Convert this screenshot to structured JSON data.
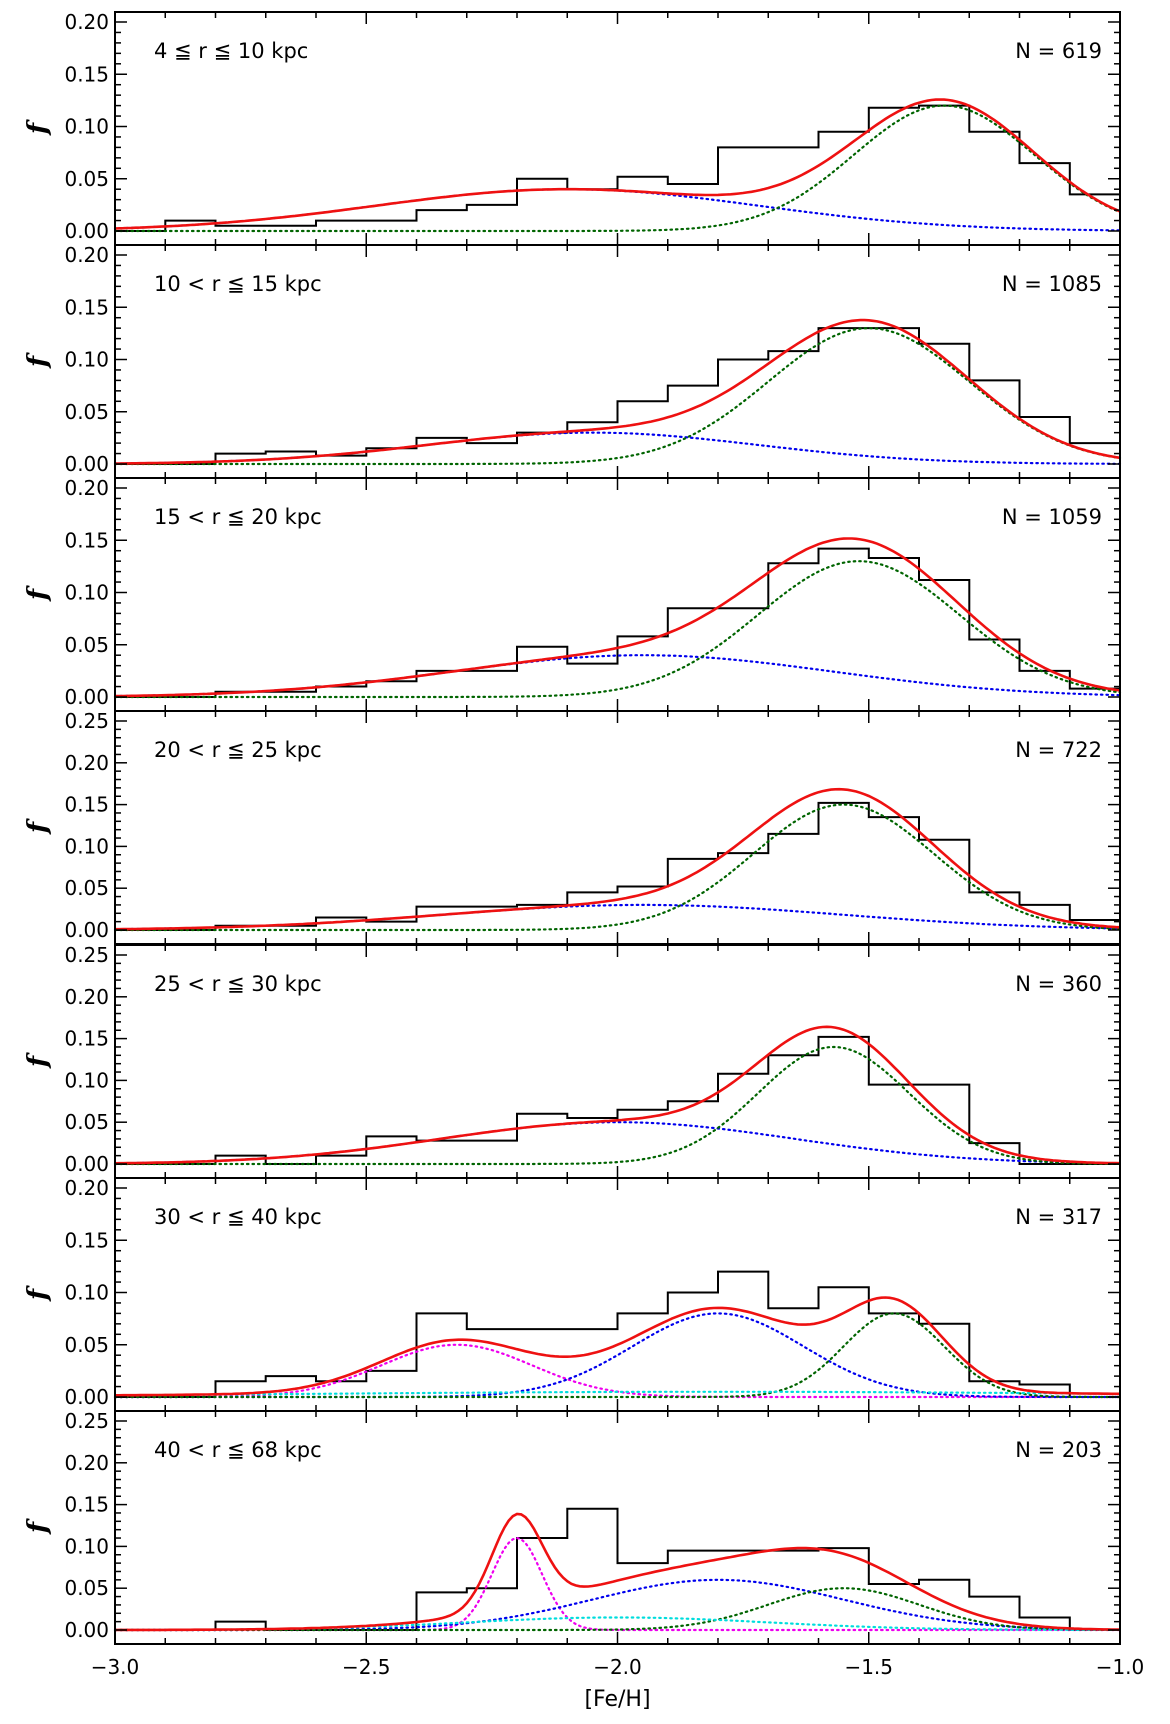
{
  "chart_data": {
    "type": "histogram_with_gaussian_fits",
    "xlabel": "[Fe/H]",
    "ylabel": "f",
    "xlim": [
      -3.0,
      -1.0
    ],
    "x_ticks": [
      "−3.0",
      "−2.5",
      "−2.0",
      "−1.5",
      "−1.0"
    ],
    "bin_edges": [
      -3.0,
      -2.9,
      -2.8,
      -2.7,
      -2.6,
      -2.5,
      -2.4,
      -2.3,
      -2.2,
      -2.1,
      -2.0,
      -1.9,
      -1.8,
      -1.7,
      -1.6,
      -1.5,
      -1.4,
      -1.3,
      -1.2,
      -1.1,
      -1.0
    ],
    "colors": {
      "histogram": "#000000",
      "total_fit": "#ee1111",
      "metal_poor": "#0000ee",
      "metal_rich": "#006400",
      "comp3": "#ee00ee",
      "comp4": "#00dddd"
    },
    "panels": [
      {
        "range_label": "4 ≦ r ≦ 10 kpc",
        "n_label": "N = 619",
        "ylim": [
          0,
          0.2
        ],
        "y_ticks": [
          "0.00",
          "0.05",
          "0.10",
          "0.15",
          "0.20"
        ],
        "hist": [
          0.0,
          0.01,
          0.005,
          0.005,
          0.01,
          0.01,
          0.02,
          0.025,
          0.05,
          0.04,
          0.052,
          0.045,
          0.08,
          0.08,
          0.095,
          0.118,
          0.12,
          0.095,
          0.065,
          0.035
        ],
        "components": [
          {
            "role": "metal_poor",
            "mu": -2.1,
            "sigma": 0.38,
            "amp": 0.04
          },
          {
            "role": "metal_rich",
            "mu": -1.35,
            "sigma": 0.18,
            "amp": 0.12
          }
        ]
      },
      {
        "range_label": "10 < r ≦ 15 kpc",
        "n_label": "N = 1085",
        "ylim": [
          0,
          0.2
        ],
        "y_ticks": [
          "0.00",
          "0.05",
          "0.10",
          "0.15",
          "0.20"
        ],
        "hist": [
          0.0,
          0.0,
          0.01,
          0.012,
          0.008,
          0.015,
          0.025,
          0.02,
          0.03,
          0.04,
          0.06,
          0.075,
          0.1,
          0.108,
          0.13,
          0.13,
          0.115,
          0.08,
          0.045,
          0.02
        ],
        "components": [
          {
            "role": "metal_poor",
            "mu": -2.05,
            "sigma": 0.33,
            "amp": 0.03
          },
          {
            "role": "metal_rich",
            "mu": -1.5,
            "sigma": 0.2,
            "amp": 0.13
          }
        ]
      },
      {
        "range_label": "15 < r ≦ 20 kpc",
        "n_label": "N = 1059",
        "ylim": [
          0,
          0.2
        ],
        "y_ticks": [
          "0.00",
          "0.05",
          "0.10",
          "0.15",
          "0.20"
        ],
        "hist": [
          0.0,
          0.0,
          0.005,
          0.005,
          0.01,
          0.015,
          0.025,
          0.025,
          0.048,
          0.032,
          0.058,
          0.085,
          0.085,
          0.128,
          0.142,
          0.133,
          0.112,
          0.055,
          0.025,
          0.008
        ],
        "components": [
          {
            "role": "metal_poor",
            "mu": -1.95,
            "sigma": 0.38,
            "amp": 0.04
          },
          {
            "role": "metal_rich",
            "mu": -1.52,
            "sigma": 0.2,
            "amp": 0.13
          }
        ]
      },
      {
        "range_label": "20 < r ≦ 25 kpc",
        "n_label": "N = 722",
        "ylim": [
          0,
          0.25
        ],
        "y_ticks": [
          "0.00",
          "0.05",
          "0.10",
          "0.15",
          "0.20",
          "0.25"
        ],
        "hist": [
          0.0,
          0.0,
          0.005,
          0.005,
          0.015,
          0.01,
          0.028,
          0.028,
          0.03,
          0.045,
          0.052,
          0.085,
          0.092,
          0.115,
          0.152,
          0.135,
          0.108,
          0.045,
          0.03,
          0.012
        ],
        "components": [
          {
            "role": "metal_poor",
            "mu": -1.95,
            "sigma": 0.4,
            "amp": 0.03
          },
          {
            "role": "metal_rich",
            "mu": -1.55,
            "sigma": 0.18,
            "amp": 0.15
          }
        ]
      },
      {
        "range_label": "25 < r ≦ 30 kpc",
        "n_label": "N = 360",
        "ylim": [
          0,
          0.25
        ],
        "y_ticks": [
          "0.00",
          "0.05",
          "0.10",
          "0.15",
          "0.20",
          "0.25"
        ],
        "hist": [
          0.0,
          0.0,
          0.01,
          0.0,
          0.01,
          0.033,
          0.028,
          0.028,
          0.06,
          0.055,
          0.065,
          0.075,
          0.108,
          0.13,
          0.152,
          0.095,
          0.095,
          0.025,
          0.0,
          0.0
        ],
        "components": [
          {
            "role": "metal_poor",
            "mu": -2.0,
            "sigma": 0.35,
            "amp": 0.05
          },
          {
            "role": "metal_rich",
            "mu": -1.57,
            "sigma": 0.15,
            "amp": 0.14
          }
        ]
      },
      {
        "range_label": "30 < r ≦ 40 kpc",
        "n_label": "N = 317",
        "ylim": [
          0,
          0.2
        ],
        "y_ticks": [
          "0.00",
          "0.05",
          "0.10",
          "0.15",
          "0.20"
        ],
        "hist": [
          0.0,
          0.0,
          0.015,
          0.02,
          0.015,
          0.025,
          0.08,
          0.065,
          0.065,
          0.065,
          0.08,
          0.1,
          0.12,
          0.085,
          0.105,
          0.08,
          0.07,
          0.015,
          0.012,
          0.0
        ],
        "components": [
          {
            "role": "comp3",
            "mu": -2.32,
            "sigma": 0.15,
            "amp": 0.05
          },
          {
            "role": "metal_poor",
            "mu": -1.8,
            "sigma": 0.17,
            "amp": 0.08
          },
          {
            "role": "metal_rich",
            "mu": -1.45,
            "sigma": 0.1,
            "amp": 0.08
          },
          {
            "role": "comp4",
            "mu": -1.8,
            "sigma": 0.8,
            "amp": 0.005
          }
        ]
      },
      {
        "range_label": "40 < r ≦ 68 kpc",
        "n_label": "N = 203",
        "ylim": [
          0,
          0.25
        ],
        "y_ticks": [
          "0.00",
          "0.05",
          "0.10",
          "0.15",
          "0.20",
          "0.25"
        ],
        "hist": [
          0.0,
          0.0,
          0.01,
          0.0,
          0.0,
          0.0,
          0.045,
          0.05,
          0.11,
          0.145,
          0.08,
          0.095,
          0.095,
          0.095,
          0.098,
          0.055,
          0.06,
          0.04,
          0.015,
          0.0
        ],
        "components": [
          {
            "role": "comp3",
            "mu": -2.2,
            "sigma": 0.05,
            "amp": 0.11
          },
          {
            "role": "metal_poor",
            "mu": -1.8,
            "sigma": 0.25,
            "amp": 0.06
          },
          {
            "role": "metal_rich",
            "mu": -1.55,
            "sigma": 0.15,
            "amp": 0.05
          },
          {
            "role": "comp4",
            "mu": -2.0,
            "sigma": 0.3,
            "amp": 0.015
          }
        ]
      }
    ]
  }
}
